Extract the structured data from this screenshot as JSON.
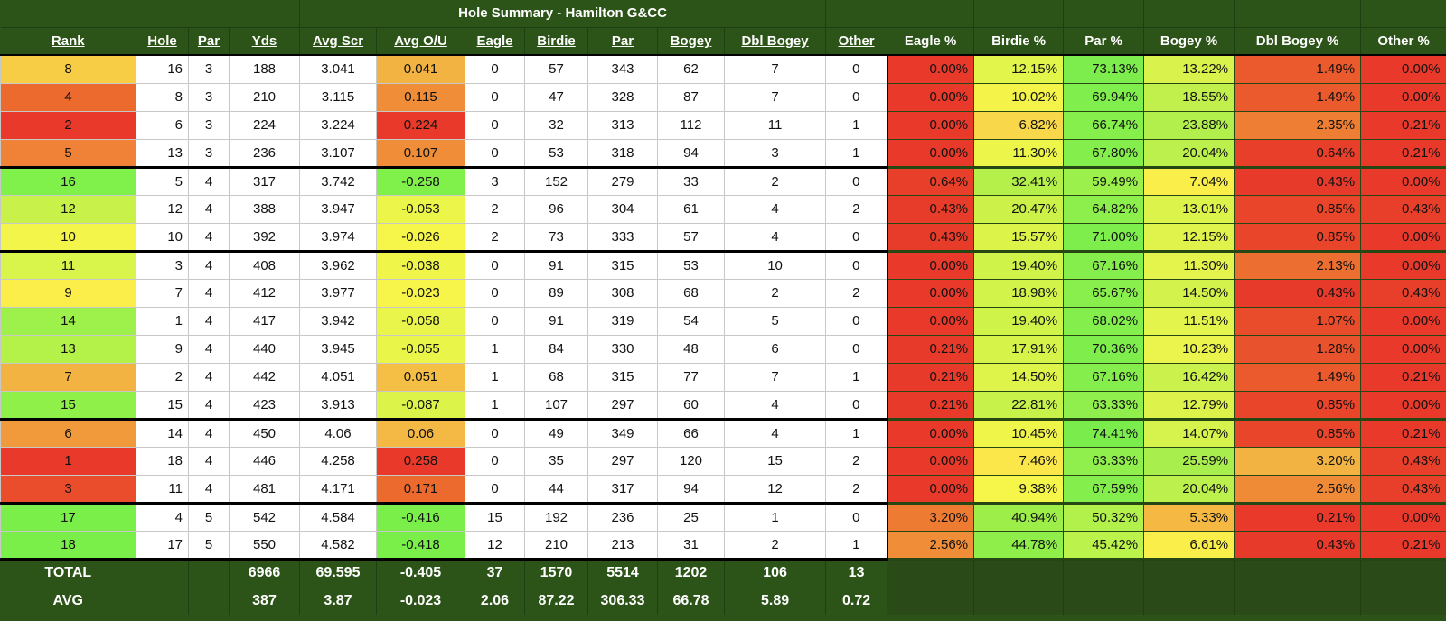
{
  "title": "Hole Summary - Hamilton G&CC",
  "columns": [
    "Rank",
    "Hole",
    "Par",
    "Yds",
    "Avg Scr",
    "Avg O/U",
    "Eagle",
    "Birdie",
    "Par",
    "Bogey",
    "Dbl Bogey",
    "Other",
    "Eagle %",
    "Birdie %",
    "Par %",
    "Bogey %",
    "Dbl Bogey %",
    "Other %"
  ],
  "rows": [
    {
      "rank": "8",
      "hole": "16",
      "par": "3",
      "yds": "188",
      "avg_scr": "3.041",
      "avg_ou": "0.041",
      "eagle": "0",
      "birdie": "57",
      "par_count": "343",
      "bogey": "62",
      "dbl_bogey": "7",
      "other": "0",
      "eagle_pct": "0.00%",
      "birdie_pct": "12.15%",
      "par_pct": "73.13%",
      "bogey_pct": "13.22%",
      "dbl_bogey_pct": "1.49%",
      "other_pct": "0.00%",
      "rank_color": "#f7cd45",
      "ou_color": "#f3b342",
      "eagle_pct_color": "#e8392b",
      "birdie_pct_color": "#e1f54a",
      "par_pct_color": "#7ded4d",
      "bogey_pct_color": "#d9f24c",
      "dbl_pct_color": "#ea5a2d",
      "other_pct_color": "#e8392b"
    },
    {
      "rank": "4",
      "hole": "8",
      "par": "3",
      "yds": "210",
      "avg_scr": "3.115",
      "avg_ou": "0.115",
      "eagle": "0",
      "birdie": "47",
      "par_count": "328",
      "bogey": "87",
      "dbl_bogey": "7",
      "other": "0",
      "eagle_pct": "0.00%",
      "birdie_pct": "10.02%",
      "par_pct": "69.94%",
      "bogey_pct": "18.55%",
      "dbl_bogey_pct": "1.49%",
      "other_pct": "0.00%",
      "rank_color": "#ec6a2e",
      "ou_color": "#ef8d38",
      "eagle_pct_color": "#e8392b",
      "birdie_pct_color": "#f3f34a",
      "par_pct_color": "#80ee4c",
      "bogey_pct_color": "#c1f04c",
      "dbl_pct_color": "#ea5a2d",
      "other_pct_color": "#e8392b"
    },
    {
      "rank": "2",
      "hole": "6",
      "par": "3",
      "yds": "224",
      "avg_scr": "3.224",
      "avg_ou": "0.224",
      "eagle": "0",
      "birdie": "32",
      "par_count": "313",
      "bogey": "112",
      "dbl_bogey": "11",
      "other": "1",
      "eagle_pct": "0.00%",
      "birdie_pct": "6.82%",
      "par_pct": "66.74%",
      "bogey_pct": "23.88%",
      "dbl_bogey_pct": "2.35%",
      "other_pct": "0.21%",
      "rank_color": "#e8392b",
      "ou_color": "#e8392b",
      "eagle_pct_color": "#e8392b",
      "birdie_pct_color": "#f9d74a",
      "par_pct_color": "#86ef4c",
      "bogey_pct_color": "#b2ef4c",
      "dbl_pct_color": "#ee7e33",
      "other_pct_color": "#e8392b"
    },
    {
      "rank": "5",
      "hole": "13",
      "par": "3",
      "yds": "236",
      "avg_scr": "3.107",
      "avg_ou": "0.107",
      "eagle": "0",
      "birdie": "53",
      "par_count": "318",
      "bogey": "94",
      "dbl_bogey": "3",
      "other": "1",
      "eagle_pct": "0.00%",
      "birdie_pct": "11.30%",
      "par_pct": "67.80%",
      "bogey_pct": "20.04%",
      "dbl_bogey_pct": "0.64%",
      "other_pct": "0.21%",
      "rank_color": "#ef8236",
      "ou_color": "#ef8d38",
      "eagle_pct_color": "#e8392b",
      "birdie_pct_color": "#ecf54a",
      "par_pct_color": "#84ee4c",
      "bogey_pct_color": "#bcf04c",
      "dbl_pct_color": "#e83f2b",
      "other_pct_color": "#e8392b"
    },
    {
      "rank": "16",
      "hole": "5",
      "par": "4",
      "yds": "317",
      "avg_scr": "3.742",
      "avg_ou": "-0.258",
      "eagle": "3",
      "birdie": "152",
      "par_count": "279",
      "bogey": "33",
      "dbl_bogey": "2",
      "other": "0",
      "eagle_pct": "0.64%",
      "birdie_pct": "32.41%",
      "par_pct": "59.49%",
      "bogey_pct": "7.04%",
      "dbl_bogey_pct": "0.43%",
      "other_pct": "0.00%",
      "rank_color": "#80f04a",
      "ou_color": "#80f04a",
      "eagle_pct_color": "#e83f2b",
      "birdie_pct_color": "#b4ef4a",
      "par_pct_color": "#9bf04c",
      "bogey_pct_color": "#f9ee4a",
      "dbl_pct_color": "#e83a2b",
      "other_pct_color": "#e8392b"
    },
    {
      "rank": "12",
      "hole": "12",
      "par": "4",
      "yds": "388",
      "avg_scr": "3.947",
      "avg_ou": "-0.053",
      "eagle": "2",
      "birdie": "96",
      "par_count": "304",
      "bogey": "61",
      "dbl_bogey": "4",
      "other": "2",
      "eagle_pct": "0.43%",
      "birdie_pct": "20.47%",
      "par_pct": "64.82%",
      "bogey_pct": "13.01%",
      "dbl_bogey_pct": "0.85%",
      "other_pct": "0.43%",
      "rank_color": "#c8f24a",
      "ou_color": "#ecf54a",
      "eagle_pct_color": "#e83c2b",
      "birdie_pct_color": "#ccf24a",
      "par_pct_color": "#8cef4c",
      "bogey_pct_color": "#dcf34c",
      "dbl_pct_color": "#e8452b",
      "other_pct_color": "#e83f2b"
    },
    {
      "rank": "10",
      "hole": "10",
      "par": "4",
      "yds": "392",
      "avg_scr": "3.974",
      "avg_ou": "-0.026",
      "eagle": "2",
      "birdie": "73",
      "par_count": "333",
      "bogey": "57",
      "dbl_bogey": "4",
      "other": "0",
      "eagle_pct": "0.43%",
      "birdie_pct": "15.57%",
      "par_pct": "71.00%",
      "bogey_pct": "12.15%",
      "dbl_bogey_pct": "0.85%",
      "other_pct": "0.00%",
      "rank_color": "#f3f54a",
      "ou_color": "#f5f54a",
      "eagle_pct_color": "#e83c2b",
      "birdie_pct_color": "#dcf44a",
      "par_pct_color": "#7eee4d",
      "bogey_pct_color": "#e0f34c",
      "dbl_pct_color": "#e8452b",
      "other_pct_color": "#e8392b"
    },
    {
      "rank": "11",
      "hole": "3",
      "par": "4",
      "yds": "408",
      "avg_scr": "3.962",
      "avg_ou": "-0.038",
      "eagle": "0",
      "birdie": "91",
      "par_count": "315",
      "bogey": "53",
      "dbl_bogey": "10",
      "other": "0",
      "eagle_pct": "0.00%",
      "birdie_pct": "19.40%",
      "par_pct": "67.16%",
      "bogey_pct": "11.30%",
      "dbl_bogey_pct": "2.13%",
      "other_pct": "0.00%",
      "rank_color": "#d9f44a",
      "ou_color": "#f0f54a",
      "eagle_pct_color": "#e8392b",
      "birdie_pct_color": "#d0f34a",
      "par_pct_color": "#85ee4c",
      "bogey_pct_color": "#e4f44c",
      "dbl_pct_color": "#ec6e30",
      "other_pct_color": "#e8392b"
    },
    {
      "rank": "9",
      "hole": "7",
      "par": "4",
      "yds": "412",
      "avg_scr": "3.977",
      "avg_ou": "-0.023",
      "eagle": "0",
      "birdie": "89",
      "par_count": "308",
      "bogey": "68",
      "dbl_bogey": "2",
      "other": "2",
      "eagle_pct": "0.00%",
      "birdie_pct": "18.98%",
      "par_pct": "65.67%",
      "bogey_pct": "14.50%",
      "dbl_bogey_pct": "0.43%",
      "other_pct": "0.43%",
      "rank_color": "#fbee4a",
      "ou_color": "#f7f54a",
      "eagle_pct_color": "#e8392b",
      "birdie_pct_color": "#d2f34a",
      "par_pct_color": "#89ef4c",
      "bogey_pct_color": "#d4f24c",
      "dbl_pct_color": "#e83a2b",
      "other_pct_color": "#e83f2b"
    },
    {
      "rank": "14",
      "hole": "1",
      "par": "4",
      "yds": "417",
      "avg_scr": "3.942",
      "avg_ou": "-0.058",
      "eagle": "0",
      "birdie": "91",
      "par_count": "319",
      "bogey": "54",
      "dbl_bogey": "5",
      "other": "0",
      "eagle_pct": "0.00%",
      "birdie_pct": "19.40%",
      "par_pct": "68.02%",
      "bogey_pct": "11.51%",
      "dbl_bogey_pct": "1.07%",
      "other_pct": "0.00%",
      "rank_color": "#9ef04a",
      "ou_color": "#e9f54a",
      "eagle_pct_color": "#e8392b",
      "birdie_pct_color": "#d0f34a",
      "par_pct_color": "#83ee4c",
      "bogey_pct_color": "#e3f44c",
      "dbl_pct_color": "#e84c2b",
      "other_pct_color": "#e8392b"
    },
    {
      "rank": "13",
      "hole": "9",
      "par": "4",
      "yds": "440",
      "avg_scr": "3.945",
      "avg_ou": "-0.055",
      "eagle": "1",
      "birdie": "84",
      "par_count": "330",
      "bogey": "48",
      "dbl_bogey": "6",
      "other": "0",
      "eagle_pct": "0.21%",
      "birdie_pct": "17.91%",
      "par_pct": "70.36%",
      "bogey_pct": "10.23%",
      "dbl_bogey_pct": "1.28%",
      "other_pct": "0.00%",
      "rank_color": "#b4f24a",
      "ou_color": "#eaf54a",
      "eagle_pct_color": "#e83a2b",
      "birdie_pct_color": "#d6f34a",
      "par_pct_color": "#7fee4d",
      "bogey_pct_color": "#ebf44c",
      "dbl_pct_color": "#e8522c",
      "other_pct_color": "#e8392b"
    },
    {
      "rank": "7",
      "hole": "2",
      "par": "4",
      "yds": "442",
      "avg_scr": "4.051",
      "avg_ou": "0.051",
      "eagle": "1",
      "birdie": "68",
      "par_count": "315",
      "bogey": "77",
      "dbl_bogey": "7",
      "other": "1",
      "eagle_pct": "0.21%",
      "birdie_pct": "14.50%",
      "par_pct": "67.16%",
      "bogey_pct": "16.42%",
      "dbl_bogey_pct": "1.49%",
      "other_pct": "0.21%",
      "rank_color": "#f3b342",
      "ou_color": "#f5bf45",
      "eagle_pct_color": "#e83a2b",
      "birdie_pct_color": "#dff44a",
      "par_pct_color": "#85ee4c",
      "bogey_pct_color": "#cbf14c",
      "dbl_pct_color": "#ea5a2d",
      "other_pct_color": "#e8392b"
    },
    {
      "rank": "15",
      "hole": "15",
      "par": "4",
      "yds": "423",
      "avg_scr": "3.913",
      "avg_ou": "-0.087",
      "eagle": "1",
      "birdie": "107",
      "par_count": "297",
      "bogey": "60",
      "dbl_bogey": "4",
      "other": "0",
      "eagle_pct": "0.21%",
      "birdie_pct": "22.81%",
      "par_pct": "63.33%",
      "bogey_pct": "12.79%",
      "dbl_bogey_pct": "0.85%",
      "other_pct": "0.00%",
      "rank_color": "#8ff04a",
      "ou_color": "#dcf34a",
      "eagle_pct_color": "#e83a2b",
      "birdie_pct_color": "#c6f24a",
      "par_pct_color": "#90ef4c",
      "bogey_pct_color": "#ddf34c",
      "dbl_pct_color": "#e8452b",
      "other_pct_color": "#e8392b"
    },
    {
      "rank": "6",
      "hole": "14",
      "par": "4",
      "yds": "450",
      "avg_scr": "4.06",
      "avg_ou": "0.06",
      "eagle": "0",
      "birdie": "49",
      "par_count": "349",
      "bogey": "66",
      "dbl_bogey": "4",
      "other": "1",
      "eagle_pct": "0.00%",
      "birdie_pct": "10.45%",
      "par_pct": "74.41%",
      "bogey_pct": "14.07%",
      "dbl_bogey_pct": "0.85%",
      "other_pct": "0.21%",
      "rank_color": "#f19a3c",
      "ou_color": "#f4b844",
      "eagle_pct_color": "#e8392b",
      "birdie_pct_color": "#f0f54a",
      "par_pct_color": "#7aed4d",
      "bogey_pct_color": "#d6f24c",
      "dbl_pct_color": "#e8452b",
      "other_pct_color": "#e8392b"
    },
    {
      "rank": "1",
      "hole": "18",
      "par": "4",
      "yds": "446",
      "avg_scr": "4.258",
      "avg_ou": "0.258",
      "eagle": "0",
      "birdie": "35",
      "par_count": "297",
      "bogey": "120",
      "dbl_bogey": "15",
      "other": "2",
      "eagle_pct": "0.00%",
      "birdie_pct": "7.46%",
      "par_pct": "63.33%",
      "bogey_pct": "25.59%",
      "dbl_bogey_pct": "3.20%",
      "other_pct": "0.43%",
      "rank_color": "#e8392b",
      "ou_color": "#e8392b",
      "eagle_pct_color": "#e8392b",
      "birdie_pct_color": "#fbe74a",
      "par_pct_color": "#90ef4c",
      "bogey_pct_color": "#a8ee4c",
      "dbl_pct_color": "#f3b342",
      "other_pct_color": "#e83f2b"
    },
    {
      "rank": "3",
      "hole": "11",
      "par": "4",
      "yds": "481",
      "avg_scr": "4.171",
      "avg_ou": "0.171",
      "eagle": "0",
      "birdie": "44",
      "par_count": "317",
      "bogey": "94",
      "dbl_bogey": "12",
      "other": "2",
      "eagle_pct": "0.00%",
      "birdie_pct": "9.38%",
      "par_pct": "67.59%",
      "bogey_pct": "20.04%",
      "dbl_bogey_pct": "2.56%",
      "other_pct": "0.43%",
      "rank_color": "#ea4d2c",
      "ou_color": "#ec6a2e",
      "eagle_pct_color": "#e8392b",
      "birdie_pct_color": "#f5f54a",
      "par_pct_color": "#84ee4c",
      "bogey_pct_color": "#bcf04c",
      "dbl_pct_color": "#ef8a36",
      "other_pct_color": "#e83f2b"
    },
    {
      "rank": "17",
      "hole": "4",
      "par": "5",
      "yds": "542",
      "avg_scr": "4.584",
      "avg_ou": "-0.416",
      "eagle": "15",
      "birdie": "192",
      "par_count": "236",
      "bogey": "25",
      "dbl_bogey": "1",
      "other": "0",
      "eagle_pct": "3.20%",
      "birdie_pct": "40.94%",
      "par_pct": "50.32%",
      "bogey_pct": "5.33%",
      "dbl_bogey_pct": "0.21%",
      "other_pct": "0.00%",
      "rank_color": "#7aef4a",
      "ou_color": "#7aef4a",
      "eagle_pct_color": "#ee7b32",
      "birdie_pct_color": "#9eee4a",
      "par_pct_color": "#b2f14c",
      "bogey_pct_color": "#f4b843",
      "dbl_pct_color": "#e8392b",
      "other_pct_color": "#e8392b"
    },
    {
      "rank": "18",
      "hole": "17",
      "par": "5",
      "yds": "550",
      "avg_scr": "4.582",
      "avg_ou": "-0.418",
      "eagle": "12",
      "birdie": "210",
      "par_count": "213",
      "bogey": "31",
      "dbl_bogey": "2",
      "other": "1",
      "eagle_pct": "2.56%",
      "birdie_pct": "44.78%",
      "par_pct": "45.42%",
      "bogey_pct": "6.61%",
      "dbl_bogey_pct": "0.43%",
      "other_pct": "0.21%",
      "rank_color": "#7aef4a",
      "ou_color": "#7aef4a",
      "eagle_pct_color": "#ef8d38",
      "birdie_pct_color": "#8fee4a",
      "par_pct_color": "#bcf24c",
      "bogey_pct_color": "#f9ee4a",
      "dbl_pct_color": "#e83a2b",
      "other_pct_color": "#e8392b"
    }
  ],
  "totals": {
    "label": "TOTAL",
    "yds": "6966",
    "avg_scr": "69.595",
    "avg_ou": "-0.405",
    "eagle": "37",
    "birdie": "1570",
    "par_count": "5514",
    "bogey": "1202",
    "dbl_bogey": "106",
    "other": "13"
  },
  "averages": {
    "label": "AVG",
    "yds": "387",
    "avg_scr": "3.87",
    "avg_ou": "-0.023",
    "eagle": "2.06",
    "birdie": "87.22",
    "par_count": "306.33",
    "bogey": "66.78",
    "dbl_bogey": "5.89",
    "other": "0.72"
  }
}
